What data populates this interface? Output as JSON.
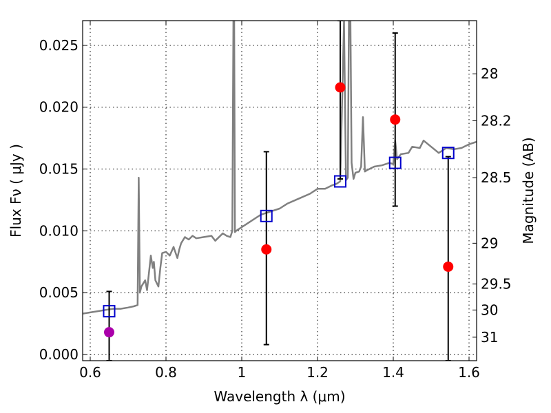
{
  "chart_data": {
    "type": "scatter",
    "xlabel": "Wavelength  λ (μm)",
    "ylabel": "Flux  Fν  ( μJy )",
    "y2label": "Magnitude (AB)",
    "xlim": [
      0.58,
      1.62
    ],
    "ylim": [
      -0.0005,
      0.027
    ],
    "grid": true,
    "x_ticks": [
      0.6,
      0.8,
      1.0,
      1.2,
      1.4,
      1.6
    ],
    "x_tick_labels": [
      "0.6",
      "0.8",
      "1",
      "1.2",
      "1.4",
      "1.6"
    ],
    "y_ticks": [
      0.0,
      0.005,
      0.01,
      0.015,
      0.02,
      0.025
    ],
    "y_tick_labels": [
      "0.000",
      "0.005",
      "0.010",
      "0.015",
      "0.020",
      "0.025"
    ],
    "y2_ticks": [
      {
        "flux": 0.0227,
        "label": "28"
      },
      {
        "flux": 0.0189,
        "label": "28.2"
      },
      {
        "flux": 0.0143,
        "label": "28.5"
      },
      {
        "flux": 0.009,
        "label": "29"
      },
      {
        "flux": 0.0057,
        "label": "29.5"
      },
      {
        "flux": 0.0036,
        "label": "30"
      },
      {
        "flux": 0.0014,
        "label": "31"
      }
    ],
    "series": [
      {
        "kind": "line",
        "color": "#808080",
        "x": [
          0.58,
          0.6,
          0.62,
          0.64,
          0.66,
          0.68,
          0.7,
          0.715,
          0.725,
          0.728,
          0.731,
          0.735,
          0.745,
          0.75,
          0.76,
          0.765,
          0.768,
          0.772,
          0.78,
          0.785,
          0.79,
          0.8,
          0.81,
          0.82,
          0.83,
          0.835,
          0.84,
          0.85,
          0.86,
          0.87,
          0.88,
          0.9,
          0.92,
          0.93,
          0.95,
          0.96,
          0.97,
          0.975,
          0.978,
          0.98,
          0.982,
          0.985,
          0.99,
          1.0,
          1.02,
          1.05,
          1.08,
          1.1,
          1.12,
          1.15,
          1.18,
          1.2,
          1.22,
          1.24,
          1.25,
          1.26,
          1.27,
          1.275,
          1.28,
          1.283,
          1.287,
          1.29,
          1.295,
          1.3,
          1.31,
          1.315,
          1.32,
          1.325,
          1.33,
          1.35,
          1.37,
          1.39,
          1.4,
          1.405,
          1.41,
          1.42,
          1.44,
          1.45,
          1.47,
          1.48,
          1.5,
          1.52,
          1.54,
          1.56,
          1.58,
          1.6,
          1.62
        ],
        "y": [
          0.0033,
          0.0034,
          0.0035,
          0.0036,
          0.0037,
          0.0037,
          0.0038,
          0.0039,
          0.004,
          0.0143,
          0.005,
          0.0055,
          0.006,
          0.0052,
          0.008,
          0.007,
          0.0075,
          0.006,
          0.0055,
          0.007,
          0.0082,
          0.0083,
          0.008,
          0.0087,
          0.0078,
          0.0085,
          0.009,
          0.0095,
          0.0093,
          0.0096,
          0.0094,
          0.0095,
          0.0096,
          0.0092,
          0.0098,
          0.0096,
          0.0095,
          0.01,
          0.027,
          0.027,
          0.0099,
          0.01,
          0.0101,
          0.0103,
          0.0107,
          0.0113,
          0.0116,
          0.0118,
          0.0122,
          0.0126,
          0.013,
          0.0134,
          0.0134,
          0.0137,
          0.0138,
          0.014,
          0.027,
          0.0141,
          0.0143,
          0.027,
          0.027,
          0.0155,
          0.0142,
          0.0147,
          0.0148,
          0.0152,
          0.0192,
          0.0148,
          0.0149,
          0.0152,
          0.0153,
          0.0155,
          0.0154,
          0.0173,
          0.0158,
          0.0162,
          0.0163,
          0.0168,
          0.0167,
          0.0173,
          0.0168,
          0.0163,
          0.0167,
          0.0166,
          0.0167,
          0.017,
          0.0172
        ]
      },
      {
        "kind": "open-square",
        "color": "#0000cc",
        "x": [
          0.65,
          1.065,
          1.26,
          1.405,
          1.545
        ],
        "y": [
          0.0035,
          0.0112,
          0.014,
          0.0155,
          0.0163
        ]
      },
      {
        "kind": "filled-circle",
        "x": [
          0.65,
          1.065,
          1.26,
          1.405,
          1.545
        ],
        "y": [
          0.0018,
          0.0085,
          0.0216,
          0.019,
          0.0071
        ],
        "colors": [
          "#aa00aa",
          "#ff0000",
          "#ff0000",
          "#ff0000",
          "#ff0000"
        ],
        "y_err_low": [
          -0.0005,
          0.0008,
          0.0142,
          0.012,
          -0.0005
        ],
        "y_err_high": [
          0.0051,
          0.0164,
          0.027,
          0.026,
          0.016
        ]
      }
    ]
  }
}
